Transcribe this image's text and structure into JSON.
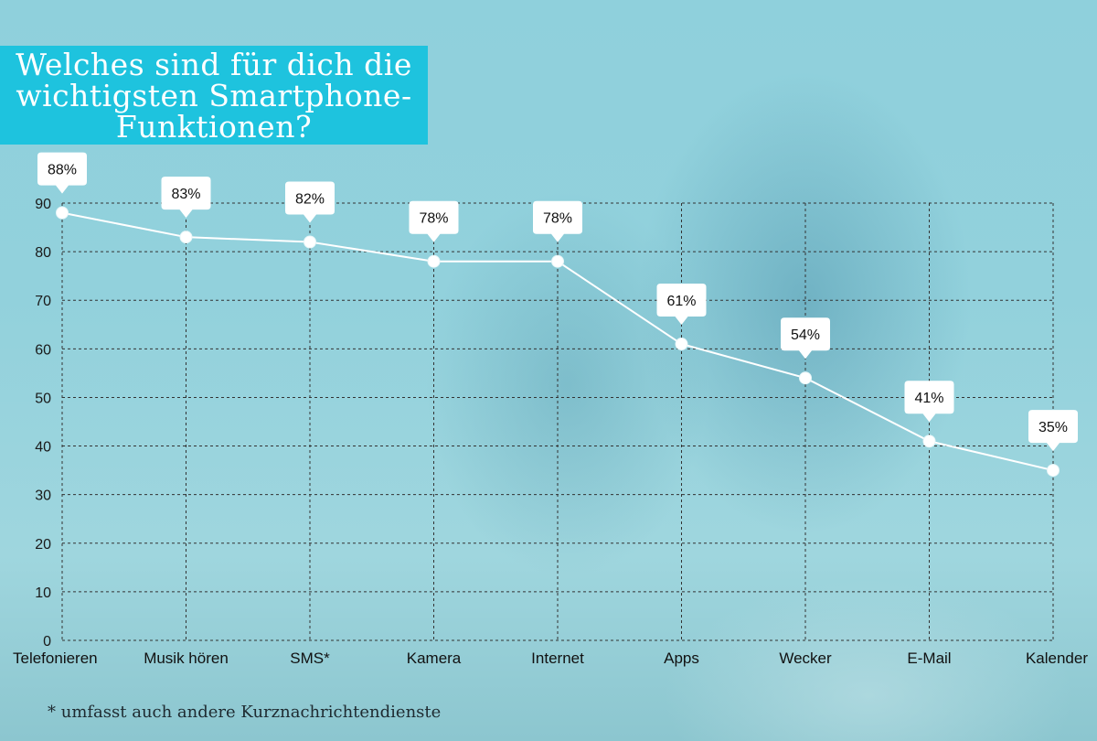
{
  "title": "Welches sind für dich die wichtigsten Smartphone-Funktionen?",
  "title_lines": [
    "Welches sind für dich die",
    "wichtigsten Smartphone-",
    "Funktionen?"
  ],
  "footnote": "* umfasst auch andere Kurznachrichtendienste",
  "colors": {
    "title_bg": "#1ec3de",
    "line": "#ffffff",
    "grid": "#333333"
  },
  "chart_data": {
    "type": "line",
    "categories": [
      "Telefonieren",
      "Musik hören",
      "SMS*",
      "Kamera",
      "Internet",
      "Apps",
      "Wecker",
      "E-Mail",
      "Kalender"
    ],
    "series": [
      {
        "values": [
          88,
          83,
          82,
          78,
          78,
          61,
          54,
          41,
          35
        ]
      }
    ],
    "data_labels": [
      "88%",
      "83%",
      "82%",
      "78%",
      "78%",
      "61%",
      "54%",
      "41%",
      "35%"
    ],
    "ylim": [
      0,
      90
    ],
    "yticks": [
      0,
      10,
      20,
      30,
      40,
      50,
      60,
      70,
      80,
      90
    ],
    "grid": true,
    "legend": "none"
  }
}
